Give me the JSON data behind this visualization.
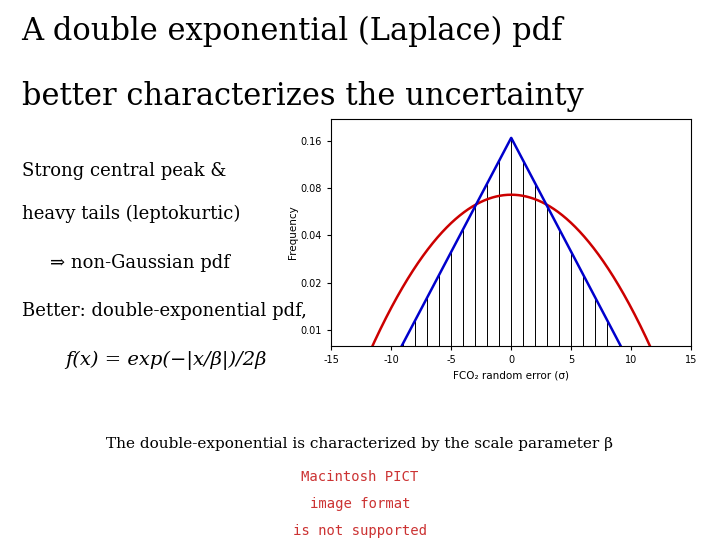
{
  "title_line1": "A double exponential (Laplace) pdf",
  "title_line2": "better characterizes the uncertainty",
  "title_fontsize": 22,
  "title_fontfamily": "serif",
  "bg_color": "#ffffff",
  "text_color": "#000000",
  "bullet1_line1": "Strong central peak &",
  "bullet1_line2": "heavy tails (leptokurtic)",
  "bullet2": "⇒ non-Gaussian pdf",
  "bullet3": "Better: double-exponential pdf,",
  "formula": "f(x) = exp(−|x/β|)/2β",
  "footnote": "The double-exponential is characterized by the scale parameter β",
  "watermark_line1": "Macintosh PICT",
  "watermark_line2": "image format",
  "watermark_line3": "is not supported",
  "watermark_color": "#cc3333",
  "plot_xlim": [
    -15,
    15
  ],
  "plot_yticks": [
    0.01,
    0.02,
    0.04,
    0.08,
    0.16
  ],
  "plot_xticks": [
    -15,
    -10,
    -5,
    0,
    5,
    10,
    15
  ],
  "plot_xtick_labels": [
    "-15",
    "-10",
    "-5",
    "0",
    "5",
    "10",
    "15"
  ],
  "plot_xlabel": "FCO₂ random error (σ)",
  "plot_ylabel": "Frequency",
  "laplace_color": "#0000cc",
  "gauss_color": "#cc0000",
  "hist_color": "#000000",
  "laplace_scale": 3.0,
  "gauss_sigma": 5.5,
  "text_fontsize": 13,
  "formula_fontsize": 14,
  "footnote_fontsize": 11
}
